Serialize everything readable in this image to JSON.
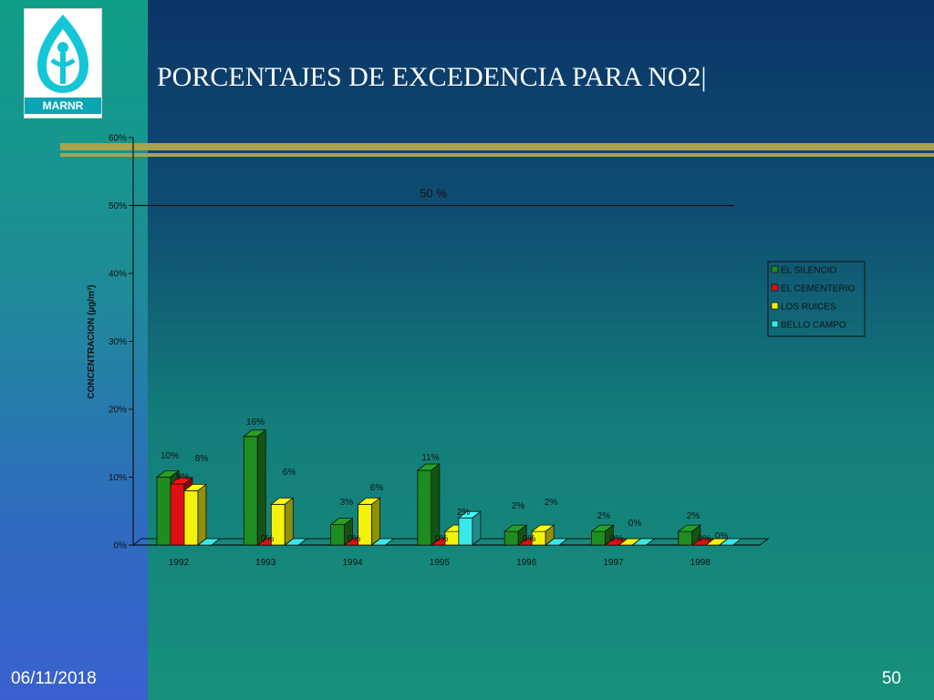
{
  "slide": {
    "title": "PORCENTAJES DE EXCEDENCIA PARA NO2|",
    "logo_text": "MARNR",
    "date": "06/11/2018",
    "page_number": "50"
  },
  "colors": {
    "EL SILENCIO": "#1f8c1f",
    "EL CEMENTERIO": "#e01010",
    "LOS RUICES": "#f2f20a",
    "BELLO CAMPO": "#38e8e8"
  },
  "chart_data": {
    "type": "bar",
    "ylabel": "CONCENTRACION (µg/m³)",
    "xlabel": "",
    "ylim": [
      0,
      60
    ],
    "yticks": [
      "0%",
      "10%",
      "20%",
      "30%",
      "40%",
      "50%",
      "60%"
    ],
    "categories": [
      "1992",
      "1993",
      "1994",
      "1995",
      "1996",
      "1997",
      "1998"
    ],
    "series": [
      {
        "name": "EL SILENCIO",
        "values": [
          10,
          16,
          3,
          11,
          2,
          2,
          2
        ],
        "labels": [
          "10%",
          "16%",
          "3%",
          "11%",
          "2%",
          "2%",
          "2%"
        ]
      },
      {
        "name": "EL CEMENTERIO",
        "values": [
          9,
          0,
          0,
          0,
          0,
          0,
          0
        ],
        "labels": [
          "9%",
          "0%",
          "0%",
          "0%",
          "0%",
          "0%",
          "0%"
        ]
      },
      {
        "name": "LOS RUICES",
        "values": [
          8,
          6,
          6,
          2,
          2,
          0,
          0
        ],
        "labels": [
          "8%",
          "6%",
          "6%",
          "2%",
          "2%",
          "0%",
          "0%"
        ]
      },
      {
        "name": "BELLO CAMPO",
        "values": [
          0,
          0,
          0,
          4,
          0,
          0,
          0
        ],
        "labels": []
      }
    ],
    "reference_line": {
      "value": 50,
      "label": "50 %"
    },
    "legend_position": "right"
  }
}
